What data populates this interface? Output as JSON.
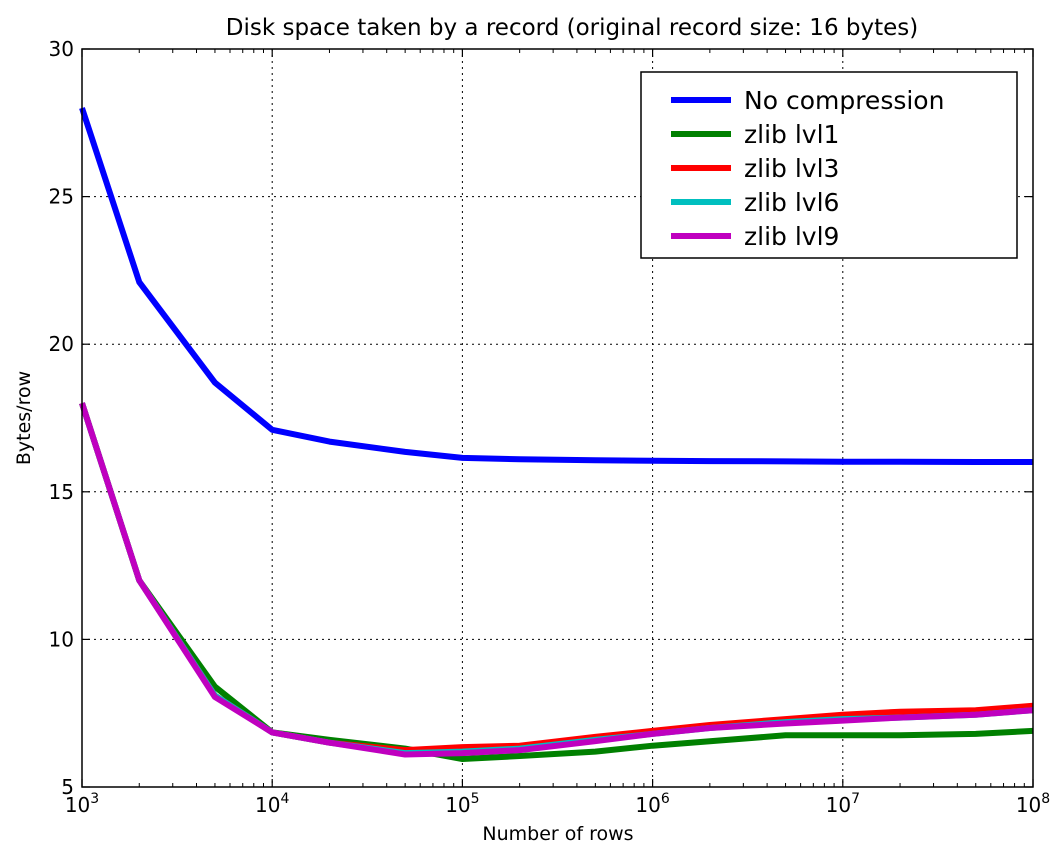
{
  "chart_data": {
    "type": "line",
    "title": "Disk space taken by a record (original record size: 16 bytes)",
    "xlabel": "Number of rows",
    "ylabel": "Bytes/row",
    "xscale": "log",
    "xlim": [
      1000,
      100000000
    ],
    "ylim": [
      5,
      30
    ],
    "grid": true,
    "legend_position": "top-right",
    "x_tick_labels": [
      {
        "base": "10",
        "exp": "3"
      },
      {
        "base": "10",
        "exp": "4"
      },
      {
        "base": "10",
        "exp": "5"
      },
      {
        "base": "10",
        "exp": "6"
      },
      {
        "base": "10",
        "exp": "7"
      },
      {
        "base": "10",
        "exp": "8"
      }
    ],
    "y_ticks": [
      "5",
      "10",
      "15",
      "20",
      "25",
      "30"
    ],
    "x": [
      1000,
      2000,
      5000,
      10000,
      20000,
      50000,
      100000,
      200000,
      500000,
      1000000,
      2000000,
      5000000,
      10000000,
      20000000,
      50000000,
      100000000
    ],
    "series": [
      {
        "name": "No compression",
        "color": "#0000ff",
        "values": [
          28.0,
          22.1,
          18.7,
          17.1,
          16.7,
          16.35,
          16.15,
          16.1,
          16.07,
          16.05,
          16.04,
          16.03,
          16.02,
          16.02,
          16.01,
          16.01
        ]
      },
      {
        "name": "zlib lvl1",
        "color": "#008000",
        "values": [
          18.0,
          12.0,
          8.4,
          6.85,
          6.6,
          6.3,
          5.95,
          6.05,
          6.2,
          6.4,
          6.55,
          6.75,
          6.75,
          6.75,
          6.8,
          6.9
        ]
      },
      {
        "name": "zlib lvl3",
        "color": "#ff0000",
        "values": [
          18.0,
          12.0,
          8.1,
          6.85,
          6.5,
          6.25,
          6.35,
          6.4,
          6.7,
          6.9,
          7.1,
          7.3,
          7.45,
          7.55,
          7.6,
          7.75
        ]
      },
      {
        "name": "zlib lvl6",
        "color": "#00bfbf",
        "values": [
          18.0,
          12.0,
          8.1,
          6.85,
          6.5,
          6.15,
          6.2,
          6.3,
          6.6,
          6.8,
          7.0,
          7.2,
          7.3,
          7.35,
          7.45,
          7.6
        ]
      },
      {
        "name": "zlib lvl9",
        "color": "#bf00bf",
        "values": [
          18.0,
          12.0,
          8.05,
          6.85,
          6.5,
          6.1,
          6.15,
          6.25,
          6.55,
          6.8,
          7.0,
          7.15,
          7.25,
          7.35,
          7.45,
          7.6
        ]
      }
    ]
  }
}
